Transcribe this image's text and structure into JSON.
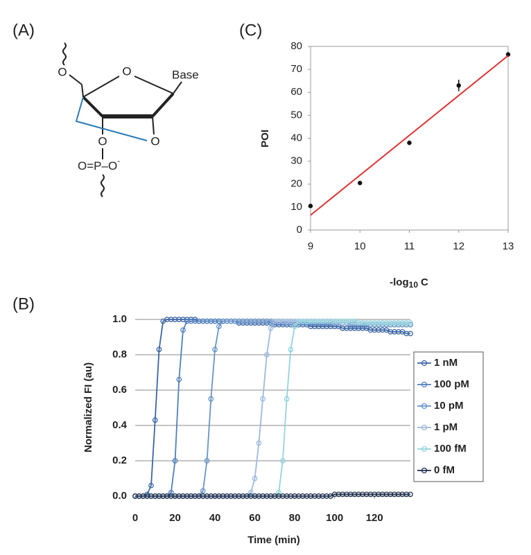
{
  "diagram": {
    "label": "(A)",
    "o5": "O",
    "o_ring": "O",
    "base": "Base",
    "o3": "O",
    "o2": "O",
    "phosphate": "O=P–O",
    "charge": "-"
  },
  "chart_data": [
    {
      "type": "scatter",
      "panel": "(C)",
      "ylabel": "POI",
      "xlabel": [
        "-log",
        "10",
        "C"
      ],
      "x": [
        9,
        10,
        11,
        12,
        13
      ],
      "series": [
        {
          "color": "#111111",
          "values": [
            10.5,
            20.5,
            38,
            63,
            76.5
          ],
          "errors": [
            0,
            0,
            0,
            2.5,
            1
          ]
        },
        {
          "type": "line",
          "color": "#e03030",
          "x": [
            9,
            13
          ],
          "values": [
            6.5,
            76
          ]
        }
      ],
      "xlim": [
        9,
        13
      ],
      "ylim": [
        0,
        80
      ],
      "xticks": [
        9,
        10,
        11,
        12,
        13
      ],
      "yticks": [
        0,
        10,
        20,
        30,
        40,
        50,
        60,
        70,
        80
      ]
    },
    {
      "type": "line",
      "panel": "(B)",
      "ylabel": "Normalized FI (au)",
      "xlabel": "Time (min)",
      "x": [
        0,
        2,
        4,
        6,
        8,
        10,
        12,
        14,
        16,
        18,
        20,
        22,
        24,
        26,
        28,
        30,
        32,
        34,
        36,
        38,
        40,
        42,
        44,
        46,
        48,
        50,
        52,
        54,
        56,
        58,
        60,
        62,
        64,
        66,
        68,
        70,
        72,
        74,
        76,
        78,
        80,
        82,
        84,
        86,
        88,
        90,
        92,
        94,
        96,
        98,
        100,
        102,
        104,
        106,
        108,
        110,
        112,
        114,
        116,
        118,
        120,
        122,
        124,
        126,
        128,
        130,
        132,
        134,
        136,
        138
      ],
      "series": [
        {
          "name": "1 nM",
          "color": "#3a64a4",
          "values": [
            0,
            0,
            0,
            0.01,
            0.06,
            0.43,
            0.83,
            0.99,
            1.0,
            1.0,
            1.0,
            1.0,
            1.0,
            1.0,
            1.0,
            1.0,
            0.99,
            0.99,
            0.99,
            0.99,
            0.99,
            0.99,
            0.99,
            0.99,
            0.99,
            0.99,
            0.98,
            0.98,
            0.98,
            0.98,
            0.98,
            0.98,
            0.98,
            0.98,
            0.98,
            0.97,
            0.97,
            0.97,
            0.97,
            0.97,
            0.97,
            0.97,
            0.97,
            0.97,
            0.96,
            0.96,
            0.96,
            0.96,
            0.96,
            0.96,
            0.96,
            0.96,
            0.95,
            0.95,
            0.95,
            0.95,
            0.95,
            0.95,
            0.95,
            0.94,
            0.94,
            0.94,
            0.94,
            0.94,
            0.93,
            0.93,
            0.93,
            0.93,
            0.92,
            0.92
          ]
        },
        {
          "name": "100 pM",
          "color": "#4f7fbd",
          "values": [
            0,
            0,
            0,
            0,
            0,
            0,
            0,
            0,
            0,
            0.02,
            0.2,
            0.66,
            0.94,
            0.99,
            0.99,
            0.99,
            0.99,
            0.99,
            0.99,
            0.99,
            0.99,
            0.99,
            0.99,
            0.99,
            0.99,
            0.99,
            0.99,
            0.99,
            0.99,
            0.99,
            0.99,
            0.99,
            0.99,
            0.99,
            0.98,
            0.98,
            0.98,
            0.98,
            0.98,
            0.98,
            0.98,
            0.98,
            0.98,
            0.98,
            0.98,
            0.98,
            0.98,
            0.98,
            0.98,
            0.98,
            0.98,
            0.98,
            0.98,
            0.98,
            0.97,
            0.97,
            0.97,
            0.97,
            0.97,
            0.97,
            0.97,
            0.97,
            0.97,
            0.97,
            0.97,
            0.97,
            0.97,
            0.97,
            0.97,
            0.97
          ]
        },
        {
          "name": "10 pM",
          "color": "#6793c8",
          "values": [
            0,
            0,
            0,
            0,
            0,
            0,
            0,
            0,
            0,
            0,
            0,
            0,
            0,
            0,
            0,
            0,
            0,
            0.03,
            0.2,
            0.55,
            0.83,
            0.96,
            0.99,
            0.99,
            0.99,
            0.99,
            0.99,
            0.99,
            0.99,
            0.99,
            0.99,
            0.99,
            0.99,
            0.99,
            0.99,
            0.99,
            0.99,
            0.99,
            0.98,
            0.98,
            0.98,
            0.98,
            0.98,
            0.98,
            0.98,
            0.98,
            0.98,
            0.98,
            0.98,
            0.98,
            0.98,
            0.98,
            0.98,
            0.98,
            0.98,
            0.98,
            0.98,
            0.98,
            0.97,
            0.97,
            0.97,
            0.97,
            0.97,
            0.97,
            0.97,
            0.97,
            0.97,
            0.97,
            0.97,
            0.97
          ]
        },
        {
          "name": "1 pM",
          "color": "#9db9de",
          "values": [
            0,
            0,
            0,
            0,
            0,
            0,
            0,
            0,
            0,
            0,
            0,
            0,
            0,
            0,
            0,
            0,
            0,
            0,
            0,
            0,
            0,
            0,
            0,
            0,
            0,
            0,
            0,
            0,
            0,
            0.02,
            0.1,
            0.3,
            0.55,
            0.8,
            0.95,
            0.99,
            0.99,
            0.99,
            0.99,
            0.99,
            0.99,
            0.99,
            0.99,
            0.99,
            0.99,
            0.99,
            0.99,
            0.99,
            0.99,
            0.99,
            0.98,
            0.98,
            0.98,
            0.98,
            0.98,
            0.98,
            0.98,
            0.98,
            0.98,
            0.98,
            0.98,
            0.98,
            0.98,
            0.98,
            0.98,
            0.98,
            0.98,
            0.98,
            0.98,
            0.98
          ]
        },
        {
          "name": "100 fM",
          "color": "#92d3dc",
          "values": [
            0,
            0,
            0,
            0,
            0,
            0,
            0,
            0,
            0,
            0,
            0,
            0,
            0,
            0,
            0,
            0,
            0,
            0,
            0,
            0,
            0,
            0,
            0,
            0,
            0,
            0,
            0,
            0,
            0,
            0,
            0,
            0,
            0,
            0,
            0,
            0,
            0.02,
            0.2,
            0.55,
            0.83,
            0.96,
            0.99,
            0.99,
            0.99,
            0.99,
            0.99,
            0.99,
            0.99,
            0.99,
            0.99,
            0.99,
            0.99,
            0.99,
            0.99,
            0.99,
            0.99,
            0.98,
            0.98,
            0.98,
            0.98,
            0.98,
            0.98,
            0.98,
            0.98,
            0.98,
            0.98,
            0.98,
            0.98,
            0.98,
            0.98
          ]
        },
        {
          "name": "0 fM",
          "color": "#1e2d4c",
          "values": [
            0,
            0,
            0,
            0,
            0,
            0,
            0,
            0,
            0,
            0,
            0,
            0,
            0,
            0,
            0,
            0,
            0,
            0,
            0,
            0,
            0,
            0,
            0,
            0,
            0,
            0,
            0,
            0,
            0,
            0,
            0,
            0,
            0,
            0,
            0,
            0,
            0,
            0,
            0,
            0,
            0,
            0,
            0,
            0,
            0,
            0,
            0,
            0,
            0,
            0,
            0.01,
            0.01,
            0.01,
            0.01,
            0.01,
            0.01,
            0.01,
            0.01,
            0.01,
            0.01,
            0.01,
            0.01,
            0.01,
            0.01,
            0.01,
            0.01,
            0.01,
            0.01,
            0.01,
            0.01
          ]
        }
      ],
      "xlim": [
        0,
        138
      ],
      "ylim": [
        0,
        1
      ],
      "xticks": [
        0,
        20,
        40,
        60,
        80,
        100,
        120
      ],
      "yticks": [
        {
          "value": 0,
          "label": "0.0"
        },
        {
          "value": 0.2,
          "label": "0.2"
        },
        {
          "value": 0.4,
          "label": "0.4"
        },
        {
          "value": 0.6,
          "label": "0.6"
        },
        {
          "value": 0.8,
          "label": "0.8"
        },
        {
          "value": 1,
          "label": "1.0"
        }
      ],
      "grid": true,
      "legend": "right"
    }
  ]
}
